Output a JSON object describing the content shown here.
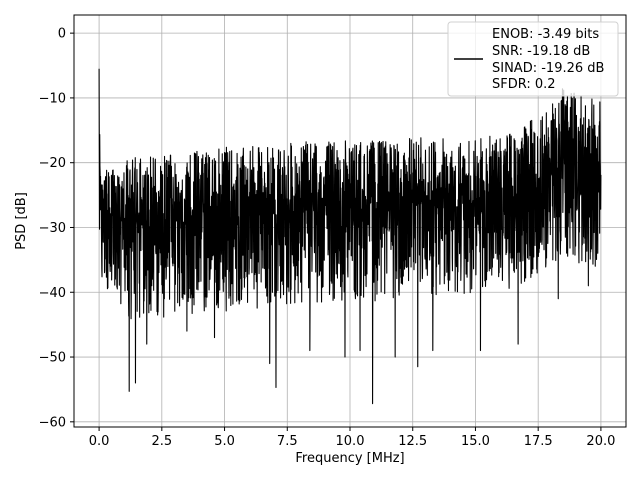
{
  "chart_data": {
    "type": "line",
    "xlabel": "Frequency [MHz]",
    "ylabel": "PSD [dB]",
    "xlim": [
      -1.0,
      21.0
    ],
    "ylim": [
      -60.8,
      2.8
    ],
    "xticks": [
      0.0,
      2.5,
      5.0,
      7.5,
      10.0,
      12.5,
      15.0,
      17.5,
      20.0
    ],
    "xtick_labels": [
      "0.0",
      "2.5",
      "5.0",
      "7.5",
      "10.0",
      "12.5",
      "15.0",
      "17.5",
      "20.0"
    ],
    "yticks": [
      0,
      -10,
      -20,
      -30,
      -40,
      -50,
      -60
    ],
    "ytick_labels": [
      "0",
      "−10",
      "−20",
      "−30",
      "−40",
      "−50",
      "−60"
    ],
    "grid": true,
    "line_color": "#000000",
    "legend": {
      "placement": "top-right",
      "entries": [
        "ENOB: -3.49 bits",
        "SNR: -19.18 dB",
        "SINAD: -19.26 dB",
        "SFDR: 0.2"
      ]
    },
    "series": [
      {
        "x": [
          0.0,
          0.02,
          0.05,
          0.1,
          0.15,
          0.2,
          0.3,
          0.5,
          0.8,
          1.0,
          1.2,
          1.4,
          1.6,
          1.8,
          2.0,
          2.5,
          3.0,
          3.5,
          4.0,
          4.5,
          5.0,
          5.5,
          6.0,
          6.5,
          7.0,
          7.5,
          8.0,
          8.5,
          9.0,
          9.5,
          10.0,
          10.5,
          10.9,
          11.5,
          12.0,
          12.5,
          13.0,
          13.5,
          14.0,
          14.5,
          15.0,
          15.5,
          16.0,
          16.5,
          17.0,
          17.2,
          17.5,
          17.8,
          18.0,
          18.3,
          18.5,
          18.8,
          19.0,
          19.3,
          19.5,
          19.8,
          20.0
        ],
        "y_mid": [
          -5.5,
          -20,
          -26,
          -30,
          -30,
          -30,
          -29,
          -29,
          -29,
          -29,
          -29,
          -29,
          -29,
          -29,
          -29,
          -28.5,
          -28.5,
          -28.5,
          -28,
          -28,
          -28,
          -28,
          -27.5,
          -27.5,
          -27.5,
          -27.5,
          -27,
          -27,
          -27,
          -27,
          -27,
          -27,
          -27,
          -27,
          -27,
          -26.5,
          -26.5,
          -26.5,
          -26.5,
          -26.5,
          -26.5,
          -26.5,
          -26.5,
          -26,
          -25,
          -24.5,
          -24,
          -22.5,
          -22,
          -21.5,
          -21,
          -21.5,
          -22,
          -22,
          -22,
          -22.5,
          -22
        ],
        "y_high": [
          -5.5,
          -15,
          -18,
          -20,
          -22,
          -22,
          -21,
          -21,
          -21,
          -20,
          -19,
          -19,
          -18.5,
          -19,
          -18.5,
          -19,
          -18.5,
          -18,
          -18,
          -18,
          -17.5,
          -18,
          -17.5,
          -17.5,
          -17,
          -17,
          -17,
          -16.5,
          -16.5,
          -16.5,
          -16.5,
          -16.5,
          -16.5,
          -16.5,
          -16.5,
          -16,
          -16,
          -16,
          -16,
          -16.5,
          -16,
          -16,
          -15.5,
          -15,
          -14,
          -13,
          -12,
          -10.5,
          -10,
          -9,
          -8.5,
          -9,
          -9,
          -9.5,
          -10,
          -10,
          -10
        ],
        "y_low": [
          -26,
          -44,
          -42,
          -38,
          -38,
          -40,
          -40,
          -40,
          -42,
          -43,
          -44,
          -45,
          -44,
          -45,
          -45,
          -44,
          -43.5,
          -43.5,
          -43,
          -43,
          -43,
          -42.5,
          -42.5,
          -42.5,
          -42,
          -42,
          -42,
          -42,
          -41.5,
          -41.5,
          -41.5,
          -41.5,
          -41.5,
          -41,
          -41,
          -41,
          -41,
          -40.5,
          -40.5,
          -40.5,
          -40,
          -40,
          -40,
          -39.5,
          -38.5,
          -38,
          -37,
          -36.5,
          -36,
          -35.5,
          -35,
          -35,
          -35.5,
          -35.5,
          -36,
          -36,
          -35
        ],
        "spikes": [
          [
            1.2,
            -55.3
          ],
          [
            1.45,
            -54.0
          ],
          [
            1.9,
            -48.0
          ],
          [
            3.5,
            -46.0
          ],
          [
            4.6,
            -47.0
          ],
          [
            6.8,
            -51.0
          ],
          [
            7.05,
            -54.7
          ],
          [
            8.4,
            -49.0
          ],
          [
            9.8,
            -50.0
          ],
          [
            10.4,
            -49.0
          ],
          [
            10.9,
            -57.2
          ],
          [
            11.8,
            -50.0
          ],
          [
            12.7,
            -51.5
          ],
          [
            13.3,
            -49.0
          ],
          [
            15.2,
            -49.0
          ],
          [
            16.7,
            -48.0
          ],
          [
            18.3,
            -41.0
          ],
          [
            19.5,
            -39.0
          ]
        ]
      }
    ]
  }
}
